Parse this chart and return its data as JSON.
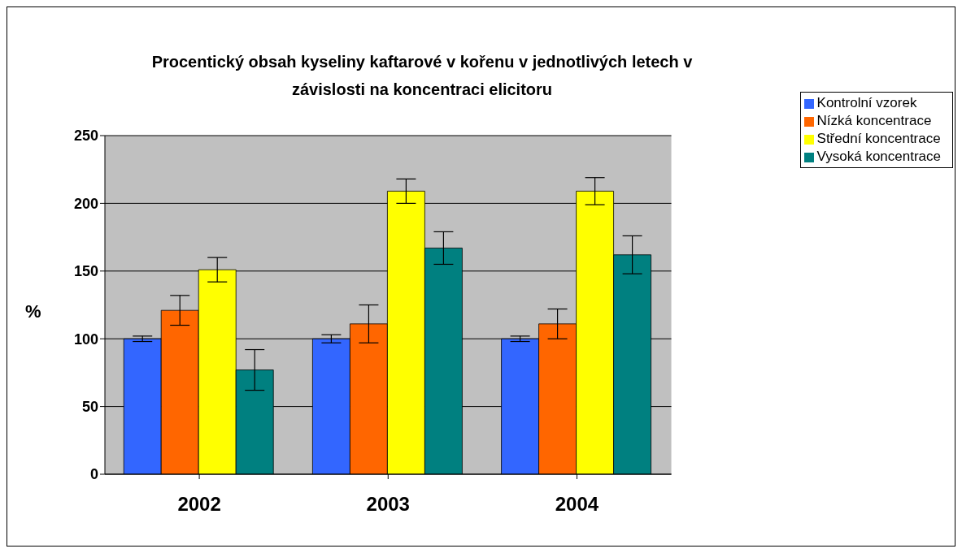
{
  "chart_data": {
    "type": "bar",
    "title": "Procentický obsah kyseliny kaftarové v kořenu v jednotlivých letech v závislosti na koncentraci elicitoru",
    "ylabel": "%",
    "categories": [
      "2002",
      "2003",
      "2004"
    ],
    "series": [
      {
        "name": "Kontrolní vzorek",
        "color": "#3366ff",
        "values": [
          100,
          100,
          100
        ],
        "errors": [
          2,
          3,
          2
        ]
      },
      {
        "name": "Nízká koncentrace",
        "color": "#ff6600",
        "values": [
          121,
          111,
          111
        ],
        "errors": [
          11,
          14,
          11
        ]
      },
      {
        "name": "Střední koncentrace",
        "color": "#ffff00",
        "values": [
          151,
          209,
          209
        ],
        "errors": [
          9,
          9,
          10
        ]
      },
      {
        "name": "Vysoká koncentrace",
        "color": "#008080",
        "values": [
          77,
          167,
          162
        ],
        "errors": [
          15,
          12,
          14
        ]
      }
    ],
    "ylim": [
      0,
      250
    ],
    "yticks": [
      0,
      50,
      100,
      150,
      200,
      250
    ],
    "grid": "y",
    "legend": "top right"
  }
}
